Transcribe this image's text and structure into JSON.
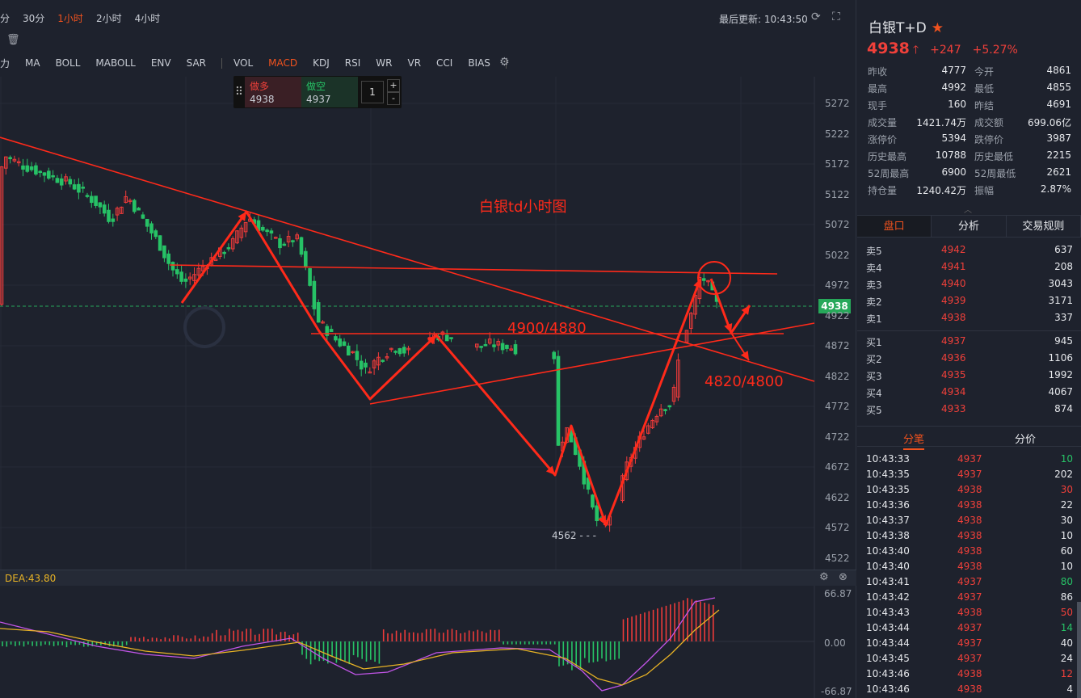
{
  "toolbar": {
    "periods": [
      {
        "label": "分",
        "active": false
      },
      {
        "label": "30分",
        "active": false
      },
      {
        "label": "1小时",
        "active": true
      },
      {
        "label": "2小时",
        "active": false
      },
      {
        "label": "4小时",
        "active": false
      }
    ],
    "last_update": "最后更新: 10:43:50",
    "indicators": [
      {
        "label": "力",
        "active": false
      },
      {
        "label": "MA",
        "active": false
      },
      {
        "label": "BOLL",
        "active": false
      },
      {
        "label": "MABOLL",
        "active": false
      },
      {
        "label": "ENV",
        "active": false
      },
      {
        "label": "SAR",
        "active": false
      },
      {
        "label": "VOL",
        "active": false
      },
      {
        "label": "MACD",
        "active": true
      },
      {
        "label": "KDJ",
        "active": false
      },
      {
        "label": "RSI",
        "active": false
      },
      {
        "label": "WR",
        "active": false
      },
      {
        "label": "VR",
        "active": false
      },
      {
        "label": "CCI",
        "active": false
      },
      {
        "label": "BIAS",
        "active": false
      }
    ]
  },
  "trade_panel": {
    "buy_label": "做多",
    "buy_price": "4938",
    "sell_label": "做空",
    "sell_price": "4937",
    "qty": "1",
    "plus": "+",
    "minus": "-"
  },
  "chart_data": {
    "type": "candlestick",
    "annotations": [
      "白银td小时图",
      "4900/4880",
      "4820/4800"
    ],
    "price_axis": [
      "5272",
      "5222",
      "5172",
      "5122",
      "5072",
      "5022",
      "4972",
      "4922",
      "4872",
      "4822",
      "4772",
      "4722",
      "4672",
      "4622",
      "4572",
      "4522"
    ],
    "current_price": "4938",
    "low_marker": "4562",
    "macd_label": "DEA:43.80",
    "macd_axis": [
      "66.87",
      "0.00",
      "-66.87"
    ],
    "colors": {
      "up": "#ef3b3a",
      "down": "#27c266",
      "annotation": "#ff2a1a",
      "dif": "#c255e8",
      "dea": "#e8b325"
    }
  },
  "symbol": {
    "name": "白银T+D",
    "price": "4938",
    "change": "+247",
    "pct": "+5.27%",
    "color_up": "#f0403a"
  },
  "stats": [
    {
      "l1": "昨收",
      "v1": "4777",
      "l2": "今开",
      "v2": "4861"
    },
    {
      "l1": "最高",
      "v1": "4992",
      "l2": "最低",
      "v2": "4855"
    },
    {
      "l1": "现手",
      "v1": "160",
      "l2": "昨结",
      "v2": "4691"
    },
    {
      "l1": "成交量",
      "v1": "1421.74万",
      "l2": "成交额",
      "v2": "699.06亿"
    },
    {
      "l1": "涨停价",
      "v1": "5394",
      "l2": "跌停价",
      "v2": "3987"
    },
    {
      "l1": "历史最高",
      "v1": "10788",
      "l2": "历史最低",
      "v2": "2215"
    },
    {
      "l1": "52周最高",
      "v1": "6900",
      "l2": "52周最低",
      "v2": "2621"
    },
    {
      "l1": "持仓量",
      "v1": "1240.42万",
      "l2": "振幅",
      "v2": "2.87%"
    }
  ],
  "tabs": [
    "盘口",
    "分析",
    "交易规则"
  ],
  "orderbook": {
    "asks": [
      {
        "l": "卖5",
        "p": "4942",
        "v": "637"
      },
      {
        "l": "卖4",
        "p": "4941",
        "v": "208"
      },
      {
        "l": "卖3",
        "p": "4940",
        "v": "3043"
      },
      {
        "l": "卖2",
        "p": "4939",
        "v": "3171"
      },
      {
        "l": "卖1",
        "p": "4938",
        "v": "337"
      }
    ],
    "bids": [
      {
        "l": "买1",
        "p": "4937",
        "v": "945"
      },
      {
        "l": "买2",
        "p": "4936",
        "v": "1106"
      },
      {
        "l": "买3",
        "p": "4935",
        "v": "1992"
      },
      {
        "l": "买4",
        "p": "4934",
        "v": "4067"
      },
      {
        "l": "买5",
        "p": "4933",
        "v": "874"
      }
    ]
  },
  "tabs2": [
    "分笔",
    "分价"
  ],
  "ticks": [
    {
      "t": "10:43:33",
      "p": "4937",
      "v": "10",
      "c": "g"
    },
    {
      "t": "10:43:35",
      "p": "4937",
      "v": "202",
      "c": ""
    },
    {
      "t": "10:43:35",
      "p": "4938",
      "v": "30",
      "c": "r"
    },
    {
      "t": "10:43:36",
      "p": "4938",
      "v": "22",
      "c": ""
    },
    {
      "t": "10:43:37",
      "p": "4938",
      "v": "30",
      "c": ""
    },
    {
      "t": "10:43:38",
      "p": "4938",
      "v": "10",
      "c": ""
    },
    {
      "t": "10:43:40",
      "p": "4938",
      "v": "60",
      "c": ""
    },
    {
      "t": "10:43:40",
      "p": "4938",
      "v": "10",
      "c": ""
    },
    {
      "t": "10:43:41",
      "p": "4937",
      "v": "80",
      "c": "g"
    },
    {
      "t": "10:43:42",
      "p": "4937",
      "v": "86",
      "c": ""
    },
    {
      "t": "10:43:43",
      "p": "4938",
      "v": "50",
      "c": "r"
    },
    {
      "t": "10:43:44",
      "p": "4937",
      "v": "14",
      "c": "g"
    },
    {
      "t": "10:43:44",
      "p": "4937",
      "v": "40",
      "c": ""
    },
    {
      "t": "10:43:45",
      "p": "4937",
      "v": "24",
      "c": ""
    },
    {
      "t": "10:43:46",
      "p": "4938",
      "v": "12",
      "c": "r"
    },
    {
      "t": "10:43:46",
      "p": "4938",
      "v": "4",
      "c": ""
    }
  ]
}
